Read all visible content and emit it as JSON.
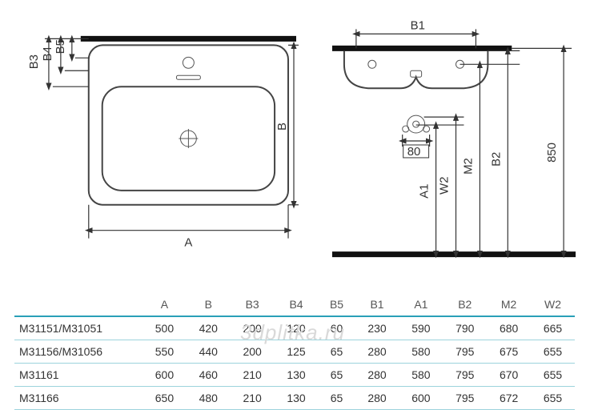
{
  "diagram": {
    "top_labels": {
      "A": "A",
      "B": "B",
      "B3": "B3",
      "B4": "B4",
      "B5": "B5"
    },
    "front_labels": {
      "B1": "B1",
      "A1": "A1",
      "W2": "W2",
      "M2": "M2",
      "B2": "B2",
      "H": "850",
      "valve": "80"
    },
    "colors": {
      "line": "#333333",
      "thick": "#111111",
      "table_head_border": "#2aa0b7",
      "table_row_border": "#9cd3dc",
      "bg": "#ffffff"
    },
    "stroke_widths": {
      "thick_bar": 7,
      "object": 2,
      "dimension": 1.2
    }
  },
  "table": {
    "columns": [
      "",
      "A",
      "B",
      "B3",
      "B4",
      "B5",
      "B1",
      "A1",
      "B2",
      "M2",
      "W2"
    ],
    "rows": [
      [
        "M31151/M31051",
        "500",
        "420",
        "200",
        "120",
        "60",
        "230",
        "590",
        "790",
        "680",
        "665"
      ],
      [
        "M31156/M31056",
        "550",
        "440",
        "200",
        "125",
        "65",
        "280",
        "580",
        "795",
        "675",
        "655"
      ],
      [
        "M31161",
        "600",
        "460",
        "210",
        "130",
        "65",
        "280",
        "580",
        "795",
        "670",
        "655"
      ],
      [
        "M31166",
        "650",
        "480",
        "210",
        "130",
        "65",
        "280",
        "600",
        "795",
        "672",
        "655"
      ]
    ]
  },
  "watermark": "3dplitka.ru"
}
